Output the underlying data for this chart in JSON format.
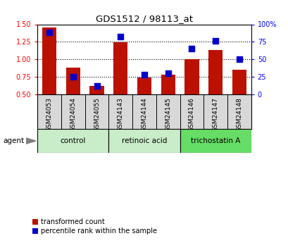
{
  "title": "GDS1512 / 98113_at",
  "samples": [
    "GSM24053",
    "GSM24054",
    "GSM24055",
    "GSM24143",
    "GSM24144",
    "GSM24145",
    "GSM24146",
    "GSM24147",
    "GSM24148"
  ],
  "red_values": [
    1.45,
    0.88,
    0.62,
    1.24,
    0.74,
    0.78,
    1.0,
    1.13,
    0.85
  ],
  "blue_values": [
    88,
    25,
    12,
    82,
    28,
    30,
    65,
    76,
    50
  ],
  "ylim_left": [
    0.5,
    1.5
  ],
  "ylim_right": [
    0,
    100
  ],
  "yticks_left": [
    0.5,
    0.75,
    1.0,
    1.25,
    1.5
  ],
  "yticks_right": [
    0,
    25,
    50,
    75,
    100
  ],
  "yticklabels_right": [
    "0",
    "25",
    "50",
    "75",
    "100%"
  ],
  "groups": [
    {
      "label": "control",
      "start": 0,
      "end": 3,
      "color": "#c8edc8"
    },
    {
      "label": "retinoic acid",
      "start": 3,
      "end": 6,
      "color": "#c8edc8"
    },
    {
      "label": "trichostatin A",
      "start": 6,
      "end": 9,
      "color": "#66dd66"
    }
  ],
  "bar_color": "#bb1100",
  "marker_color": "#0000cc",
  "bar_width": 0.6,
  "legend_red": "transformed count",
  "legend_blue": "percentile rank within the sample",
  "agent_label": "agent",
  "sample_box_color": "#d8d8d8",
  "background_color": "#ffffff",
  "plot_bg_color": "#ffffff"
}
